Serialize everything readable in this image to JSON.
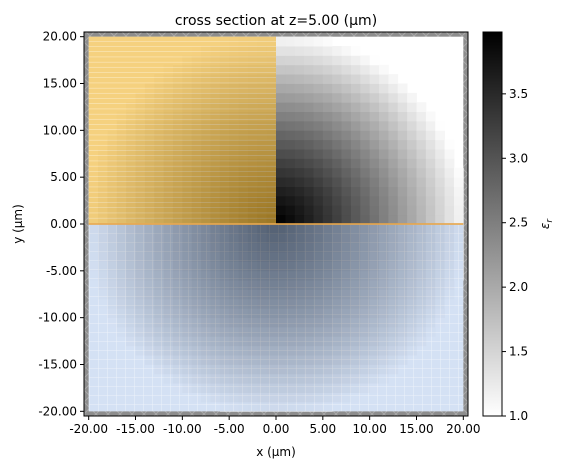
{
  "chart_data": {
    "type": "heatmap",
    "title": "cross section at z=5.00 (μm)",
    "xlabel": "x (μm)",
    "ylabel": "y (μm)",
    "xlim": [
      -20.5,
      20.5
    ],
    "ylim": [
      -20.5,
      20.5
    ],
    "x_ticks": [
      "-20.00",
      "-15.00",
      "-10.00",
      "-5.00",
      "0.00",
      "5.00",
      "10.00",
      "15.00",
      "20.00"
    ],
    "x_tick_values": [
      -20,
      -15,
      -10,
      -5,
      0,
      5,
      10,
      15,
      20
    ],
    "y_ticks": [
      "20.00",
      "15.00",
      "10.00",
      "5.00",
      "0.00",
      "-5.00",
      "-10.00",
      "-15.00",
      "-20.00"
    ],
    "y_tick_values": [
      20,
      15,
      10,
      5,
      0,
      -5,
      -10,
      -15,
      -20
    ],
    "colorbar": {
      "label": "εr",
      "label_main": "ε",
      "label_sub": "r",
      "range": [
        1.0,
        3.98
      ],
      "ticks": [
        "3.5",
        "3.0",
        "2.5",
        "2.0",
        "1.5",
        "1.0"
      ],
      "tick_values": [
        3.5,
        3.0,
        2.5,
        2.0,
        1.5,
        1.0
      ],
      "cmap": [
        "#ffffff",
        "#000000"
      ]
    },
    "sphere": {
      "center": [
        0,
        0
      ],
      "radius": 20.5,
      "eps_min": 1.0,
      "eps_max": 3.98
    },
    "overlays": [
      {
        "name": "source-region",
        "color": "#f0b83a",
        "x": [
          -20,
          0
        ],
        "y": [
          0,
          20
        ]
      },
      {
        "name": "monitor-region",
        "color": "#a9c2e8",
        "x": [
          -20,
          20
        ],
        "y": [
          -20,
          0
        ]
      }
    ],
    "pml_color": "#8a8a8a",
    "source_line_color": "#e8a64a"
  }
}
